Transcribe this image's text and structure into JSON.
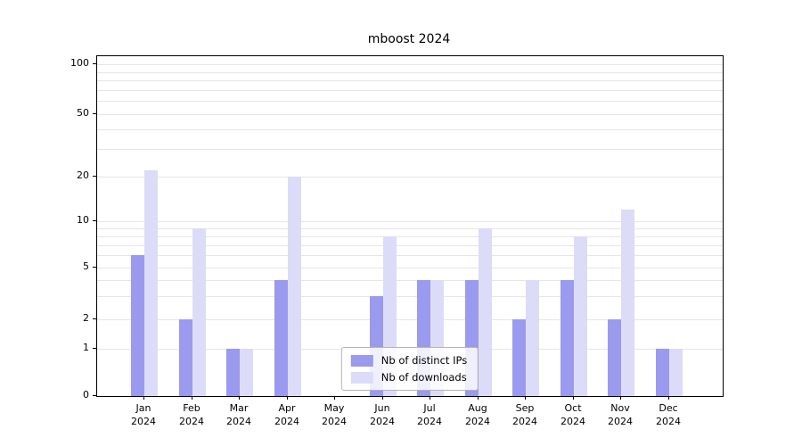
{
  "chart_data": {
    "type": "bar",
    "title": "mboost 2024",
    "categories": [
      "Jan 2024",
      "Feb 2024",
      "Mar 2024",
      "Apr 2024",
      "May 2024",
      "Jun 2024",
      "Jul 2024",
      "Aug 2024",
      "Sep 2024",
      "Oct 2024",
      "Nov 2024",
      "Dec 2024"
    ],
    "series": [
      {
        "name": "Nb of distinct IPs",
        "color": "#9a9aee",
        "values": [
          6,
          2,
          1,
          4,
          0,
          3,
          4,
          4,
          2,
          4,
          2,
          1
        ]
      },
      {
        "name": "Nb of downloads",
        "color": "#dcdcf8",
        "values": [
          22,
          9,
          1,
          20,
          0,
          8,
          4,
          9,
          4,
          8,
          12,
          1
        ]
      }
    ],
    "yticks": [
      0,
      1,
      2,
      5,
      10,
      20,
      50,
      100
    ],
    "minor_gridlines": [
      3,
      4,
      6,
      7,
      8,
      9,
      30,
      40,
      60,
      70,
      80,
      90
    ],
    "scale": "symlog",
    "ylim": [
      0,
      100
    ],
    "grid": true,
    "legend_position": "lower center"
  }
}
